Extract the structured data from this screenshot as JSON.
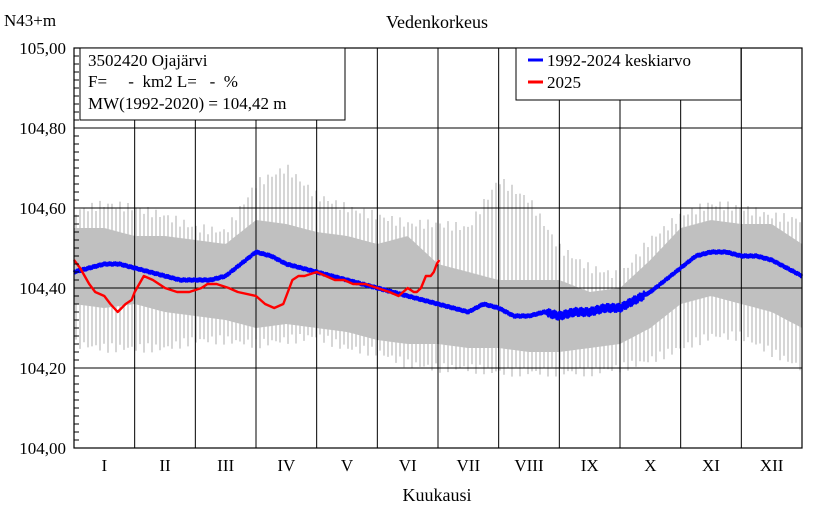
{
  "chart_data": {
    "type": "line",
    "title": "Vedenkorkeus",
    "ylabel": "N43+m",
    "xlabel": "Kuukausi",
    "ylim": [
      104.0,
      105.0
    ],
    "yticks": [
      "104,00",
      "104,20",
      "104,40",
      "104,60",
      "104,80",
      "105,00"
    ],
    "yticks_values": [
      104.0,
      104.2,
      104.4,
      104.6,
      104.8,
      105.0
    ],
    "months": [
      "I",
      "II",
      "III",
      "IV",
      "V",
      "VI",
      "VII",
      "VIII",
      "IX",
      "X",
      "XI",
      "XII"
    ],
    "grid": true,
    "info": {
      "station": "3502420 Ojajärvi",
      "area": "F=     -  km2 L=   -  %",
      "mw": "MW(1992-2020) = 104,42 m"
    },
    "legend": {
      "position": "top-right",
      "items": [
        {
          "label": "1992-2024 keskiarvo",
          "color": "#0000ff"
        },
        {
          "label": "2025",
          "color": "#ff0000"
        }
      ]
    },
    "colors": {
      "range": "#c0c0c0",
      "mean": "#0000ff",
      "current": "#ff0000"
    },
    "range_envelope": {
      "x": [
        0,
        0.5,
        1,
        1.5,
        2,
        2.5,
        3,
        3.5,
        4,
        4.5,
        5,
        5.5,
        6,
        6.5,
        7,
        7.5,
        8,
        8.5,
        9,
        9.5,
        10,
        10.5,
        11,
        11.5,
        12
      ],
      "p_low": [
        104.36,
        104.35,
        104.36,
        104.34,
        104.33,
        104.32,
        104.3,
        104.31,
        104.3,
        104.29,
        104.27,
        104.26,
        104.26,
        104.25,
        104.25,
        104.24,
        104.24,
        104.25,
        104.26,
        104.3,
        104.36,
        104.38,
        104.36,
        104.34,
        104.3
      ],
      "p_high": [
        104.55,
        104.55,
        104.53,
        104.53,
        104.52,
        104.51,
        104.57,
        104.56,
        104.54,
        104.53,
        104.51,
        104.53,
        104.46,
        104.44,
        104.42,
        104.42,
        104.42,
        104.39,
        104.4,
        104.47,
        104.55,
        104.57,
        104.56,
        104.56,
        104.51
      ],
      "max": [
        104.59,
        104.61,
        104.6,
        104.58,
        104.55,
        104.54,
        104.66,
        104.7,
        104.63,
        104.6,
        104.58,
        104.56,
        104.56,
        104.55,
        104.67,
        104.62,
        104.5,
        104.45,
        104.43,
        104.52,
        104.58,
        104.61,
        104.6,
        104.58,
        104.57
      ],
      "min": [
        104.26,
        104.25,
        104.25,
        104.25,
        104.27,
        104.27,
        104.26,
        104.27,
        104.28,
        104.25,
        104.24,
        104.21,
        104.2,
        104.2,
        104.19,
        104.19,
        104.19,
        104.19,
        104.2,
        104.22,
        104.25,
        104.28,
        104.28,
        104.24,
        104.2
      ]
    },
    "series": [
      {
        "name": "1992-2024 keskiarvo",
        "color": "#0000ff",
        "x": [
          0,
          0.25,
          0.5,
          0.75,
          1,
          1.25,
          1.5,
          1.75,
          2,
          2.25,
          2.5,
          2.75,
          3,
          3.25,
          3.5,
          3.75,
          4,
          4.25,
          4.5,
          4.75,
          5,
          5.25,
          5.5,
          5.75,
          6,
          6.25,
          6.5,
          6.75,
          7,
          7.25,
          7.5,
          7.75,
          8,
          8.25,
          8.5,
          8.75,
          9,
          9.25,
          9.5,
          9.75,
          10,
          10.25,
          10.5,
          10.75,
          11,
          11.25,
          11.5,
          11.75,
          12
        ],
        "y": [
          104.44,
          104.45,
          104.46,
          104.46,
          104.45,
          104.44,
          104.43,
          104.42,
          104.42,
          104.42,
          104.43,
          104.46,
          104.49,
          104.48,
          104.46,
          104.45,
          104.44,
          104.43,
          104.42,
          104.41,
          104.4,
          104.39,
          104.38,
          104.37,
          104.36,
          104.35,
          104.34,
          104.36,
          104.35,
          104.33,
          104.33,
          104.34,
          104.33,
          104.34,
          104.34,
          104.35,
          104.35,
          104.37,
          104.39,
          104.42,
          104.45,
          104.48,
          104.49,
          104.49,
          104.48,
          104.48,
          104.47,
          104.45,
          104.43
        ]
      },
      {
        "name": "2025",
        "color": "#ff0000",
        "x": [
          0,
          0.1,
          0.25,
          0.35,
          0.5,
          0.6,
          0.72,
          0.85,
          0.95,
          1.0,
          1.15,
          1.3,
          1.5,
          1.7,
          1.9,
          2.1,
          2.2,
          2.35,
          2.55,
          2.7,
          3.0,
          3.15,
          3.3,
          3.45,
          3.6,
          3.7,
          3.8,
          4.0,
          4.15,
          4.3,
          4.45,
          4.6,
          4.8,
          5.0,
          5.2,
          5.35,
          5.5,
          5.6,
          5.65,
          5.72,
          5.8,
          5.88,
          5.93,
          5.98,
          6.02
        ],
        "y": [
          104.47,
          104.45,
          104.41,
          104.39,
          104.38,
          104.36,
          104.34,
          104.36,
          104.37,
          104.39,
          104.43,
          104.42,
          104.4,
          104.39,
          104.39,
          104.4,
          104.41,
          104.41,
          104.4,
          104.39,
          104.38,
          104.36,
          104.35,
          104.36,
          104.42,
          104.43,
          104.43,
          104.44,
          104.43,
          104.42,
          104.42,
          104.41,
          104.41,
          104.4,
          104.39,
          104.38,
          104.4,
          104.39,
          104.39,
          104.4,
          104.43,
          104.43,
          104.44,
          104.46,
          104.47
        ]
      }
    ]
  }
}
